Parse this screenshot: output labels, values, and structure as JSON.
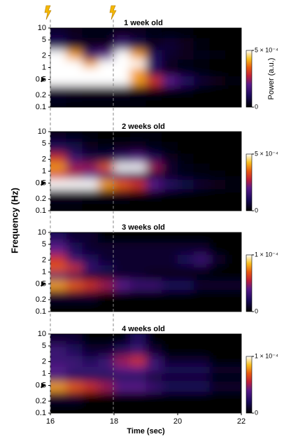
{
  "chart_data": [
    {
      "type": "heatmap",
      "title": "1 week old",
      "ylabel": "Frequency (Hz)",
      "clabel": "Power (a.u.)",
      "xlim": [
        16,
        22
      ],
      "ylim": [
        0.1,
        10
      ],
      "yticks": [
        0.1,
        0.2,
        0.5,
        1,
        2,
        5,
        10
      ],
      "log_y": true,
      "clim": [
        0,
        0.0005
      ],
      "cticks": [
        0,
        {
          "value": 0.0005,
          "label": "5 × 10⁻⁴"
        }
      ],
      "x": [
        16.25,
        16.75,
        17.25,
        17.75,
        18.25,
        18.75,
        19.25,
        19.75,
        20.25,
        20.75,
        21.25,
        21.75
      ],
      "y": [
        0.13,
        0.25,
        0.5,
        0.8,
        1.3,
        2,
        4,
        8
      ],
      "z": [
        [
          2e-05,
          1e-05,
          1e-05,
          1e-05,
          1e-05,
          1e-05,
          0,
          0,
          0,
          0,
          0,
          0
        ],
        [
          5e-05,
          4e-05,
          3e-05,
          3e-05,
          3e-05,
          2e-05,
          2e-05,
          1e-05,
          1e-05,
          0,
          0,
          0
        ],
        [
          0.0006,
          0.0006,
          0.0006,
          0.0006,
          0.0005,
          0.0004,
          0.0003,
          0.0002,
          0.00012,
          6e-05,
          3e-05,
          1e-05
        ],
        [
          0.0006,
          0.0006,
          0.0006,
          0.0006,
          0.0006,
          0.0004,
          0.0001,
          3e-05,
          2e-05,
          1e-05,
          0,
          0
        ],
        [
          0.0006,
          0.0005,
          0.0004,
          0.0005,
          0.0006,
          0.0005,
          0.00012,
          3e-05,
          2e-05,
          1e-05,
          0,
          0
        ],
        [
          0.0005,
          0.0004,
          0.00015,
          0.0002,
          0.0005,
          0.0004,
          0.0001,
          5e-05,
          3e-05,
          2e-05,
          1e-05,
          0
        ],
        [
          0.0001,
          5e-05,
          3e-05,
          3e-05,
          0.00015,
          8e-05,
          3e-05,
          6e-05,
          3e-05,
          1e-05,
          0,
          0
        ],
        [
          5e-05,
          3e-05,
          2e-05,
          2e-05,
          3e-05,
          3e-05,
          2e-05,
          1e-05,
          1e-05,
          0,
          0,
          0
        ]
      ]
    },
    {
      "type": "heatmap",
      "title": "2 weeks old",
      "xlim": [
        16,
        22
      ],
      "ylim": [
        0.1,
        10
      ],
      "yticks": [
        0.1,
        0.2,
        0.5,
        1,
        2,
        5,
        10
      ],
      "log_y": true,
      "clim": [
        0,
        0.0005
      ],
      "cticks": [
        0,
        {
          "value": 0.0005,
          "label": "5 × 10⁻⁴"
        }
      ],
      "x": [
        16.25,
        16.75,
        17.25,
        17.75,
        18.25,
        18.75,
        19.25,
        19.75,
        20.25,
        20.75,
        21.25,
        21.75
      ],
      "y": [
        0.13,
        0.25,
        0.5,
        0.8,
        1.3,
        2,
        4,
        8
      ],
      "z": [
        [
          1e-05,
          1e-05,
          0,
          0,
          0,
          0,
          0,
          0,
          0,
          0,
          0,
          0
        ],
        [
          3e-05,
          3e-05,
          2e-05,
          2e-05,
          2e-05,
          1e-05,
          1e-05,
          0,
          0,
          0,
          0,
          0
        ],
        [
          0.0006,
          0.0006,
          0.0005,
          0.0004,
          0.00035,
          0.0003,
          0.0002,
          0.00012,
          8e-05,
          5e-05,
          3e-05,
          2e-05
        ],
        [
          0.0003,
          0.00025,
          0.0002,
          0.00015,
          0.00012,
          0.0001,
          6e-05,
          3e-05,
          2e-05,
          1e-05,
          1e-05,
          0
        ],
        [
          0.0004,
          0.00025,
          0.00025,
          0.00035,
          0.0005,
          0.00055,
          0.00025,
          6e-05,
          2e-05,
          1e-05,
          0,
          0
        ],
        [
          0.0003,
          0.00015,
          8e-05,
          8e-05,
          0.00015,
          0.0002,
          0.0001,
          3e-05,
          1e-05,
          0,
          0,
          0
        ],
        [
          0.0001,
          8e-05,
          3e-05,
          2e-05,
          3e-05,
          4e-05,
          2e-05,
          1e-05,
          0,
          0,
          0,
          0
        ],
        [
          3e-05,
          2e-05,
          1e-05,
          0,
          0,
          1e-05,
          1e-05,
          0,
          0,
          0,
          0,
          0
        ]
      ]
    },
    {
      "type": "heatmap",
      "title": "3 weeks old",
      "xlim": [
        16,
        22
      ],
      "ylim": [
        0.1,
        10
      ],
      "yticks": [
        0.1,
        0.2,
        0.5,
        1,
        2,
        5,
        10
      ],
      "log_y": true,
      "clim": [
        0,
        0.0001
      ],
      "cticks": [
        0,
        {
          "value": 0.0001,
          "label": "1 × 10⁻⁴"
        }
      ],
      "x": [
        16.25,
        16.75,
        17.25,
        17.75,
        18.25,
        18.75,
        19.25,
        19.75,
        20.25,
        20.75,
        21.25,
        21.75
      ],
      "y": [
        0.13,
        0.25,
        0.5,
        0.8,
        1.3,
        2,
        4,
        8
      ],
      "z": [
        [
          0,
          0,
          0,
          0,
          0,
          0,
          0,
          0,
          0,
          0,
          0,
          0
        ],
        [
          1e-05,
          1e-05,
          1e-05,
          0,
          0,
          0,
          0,
          0,
          0,
          0,
          0,
          0
        ],
        [
          8e-05,
          7e-05,
          6e-05,
          5e-05,
          4e-05,
          3e-05,
          3e-05,
          2e-05,
          2e-05,
          1e-05,
          1e-05,
          1e-05
        ],
        [
          3e-05,
          2e-05,
          1e-05,
          1e-05,
          1e-05,
          1e-05,
          0,
          0,
          0,
          0,
          0,
          0
        ],
        [
          7e-05,
          6e-05,
          3e-05,
          2e-05,
          1e-05,
          1e-05,
          1e-05,
          1e-05,
          1e-05,
          1e-05,
          0,
          0
        ],
        [
          6e-05,
          3e-05,
          2e-05,
          1e-05,
          1e-05,
          1e-05,
          1e-05,
          1e-05,
          2e-05,
          3e-05,
          1e-05,
          0
        ],
        [
          4e-05,
          2e-05,
          1e-05,
          1e-05,
          1e-05,
          1e-05,
          1e-05,
          1e-05,
          1e-05,
          1e-05,
          0,
          0
        ],
        [
          2e-05,
          1e-05,
          1e-05,
          0,
          0,
          0,
          0,
          0,
          0,
          0,
          0,
          0
        ]
      ]
    },
    {
      "type": "heatmap",
      "title": "4 weeks old",
      "xlabel": "Time (sec)",
      "xlim": [
        16,
        22
      ],
      "xticks": [
        16,
        18,
        20,
        22
      ],
      "ylim": [
        0.1,
        10
      ],
      "yticks": [
        0.1,
        0.2,
        0.5,
        1,
        2,
        5,
        10
      ],
      "log_y": true,
      "clim": [
        0,
        0.0001
      ],
      "cticks": [
        0,
        {
          "value": 0.0001,
          "label": "1 × 10⁻⁴"
        }
      ],
      "x": [
        16.25,
        16.75,
        17.25,
        17.75,
        18.25,
        18.75,
        19.25,
        19.75,
        20.25,
        20.75,
        21.25,
        21.75
      ],
      "y": [
        0.13,
        0.25,
        0.5,
        0.8,
        1.3,
        2,
        4,
        8
      ],
      "z": [
        [
          0,
          0,
          0,
          0,
          0,
          0,
          0,
          0,
          0,
          0,
          0,
          0
        ],
        [
          1e-05,
          1e-05,
          0,
          0,
          0,
          0,
          0,
          0,
          0,
          0,
          0,
          0
        ],
        [
          8e-05,
          7e-05,
          6e-05,
          5e-05,
          4e-05,
          4e-05,
          3e-05,
          2e-05,
          2e-05,
          2e-05,
          1e-05,
          1e-05
        ],
        [
          3e-05,
          2e-05,
          2e-05,
          2e-05,
          2e-05,
          2e-05,
          1e-05,
          1e-05,
          1e-05,
          1e-05,
          0,
          0
        ],
        [
          4e-05,
          3e-05,
          3e-05,
          3e-05,
          4e-05,
          4e-05,
          3e-05,
          2e-05,
          2e-05,
          2e-05,
          1e-05,
          1e-05
        ],
        [
          3e-05,
          3e-05,
          2e-05,
          3e-05,
          5e-05,
          6e-05,
          3e-05,
          1e-05,
          1e-05,
          1e-05,
          0,
          0
        ],
        [
          3e-05,
          2e-05,
          1e-05,
          1e-05,
          2e-05,
          3e-05,
          1e-05,
          0,
          0,
          0,
          0,
          0
        ],
        [
          1e-05,
          1e-05,
          0,
          0,
          0,
          2e-05,
          0,
          0,
          0,
          0,
          0,
          0
        ]
      ]
    }
  ]
}
